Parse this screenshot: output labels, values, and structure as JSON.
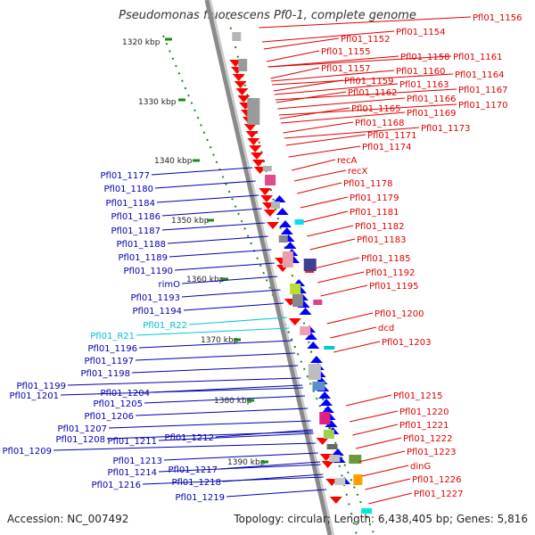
{
  "title": "Pseudomonas fluorescens Pf0-1, complete genome",
  "accession": "Accession: NC_007492",
  "summary": "Topology: circular; Length: 6,438,405 bp; Genes: 5,816",
  "colors": {
    "forward": "#ff0000",
    "reverse": "#0000ff",
    "rna": "#00c8d8",
    "backbone": "#888888",
    "ruler": "#1a8a1a",
    "forward_label": "#e00000",
    "reverse_label": "#0000b0"
  },
  "ruler_labels": [
    "1320 kbp",
    "1330 kbp",
    "1340 kbp",
    "1350 kbp",
    "1360 kbp",
    "1370 kbp",
    "1380 kbp",
    "1390 kbp"
  ],
  "forward_genes": [
    "Pfl01_1152",
    "Pfl01_1154",
    "Pfl01_1155",
    "Pfl01_1156",
    "Pfl01_1157",
    "Pfl01_1158",
    "Pfl01_1159",
    "Pfl01_1160",
    "Pfl01_1161",
    "Pfl01_1162",
    "Pfl01_1163",
    "Pfl01_1164",
    "Pfl01_1165",
    "Pfl01_1166",
    "Pfl01_1167",
    "Pfl01_1168",
    "Pfl01_1169",
    "Pfl01_1170",
    "Pfl01_1171",
    "Pfl01_1173",
    "Pfl01_1174",
    "recA",
    "recX",
    "Pfl01_1178",
    "Pfl01_1179",
    "Pfl01_1181",
    "Pfl01_1182",
    "Pfl01_1183",
    "Pfl01_1185",
    "Pfl01_1192",
    "Pfl01_1195",
    "Pfl01_1200",
    "dcd",
    "Pfl01_1203",
    "Pfl01_1215",
    "Pfl01_1220",
    "Pfl01_1221",
    "Pfl01_1222",
    "Pfl01_1223",
    "dinG",
    "Pfl01_1226",
    "Pfl01_1227"
  ],
  "reverse_genes": [
    "Pfl01_1177",
    "Pfl01_1180",
    "Pfl01_1184",
    "Pfl01_1186",
    "Pfl01_1187",
    "Pfl01_1188",
    "Pfl01_1189",
    "Pfl01_1190",
    "rimO",
    "Pfl01_1193",
    "Pfl01_1194",
    "Pfl01_R22",
    "Pfl01_R21",
    "Pfl01_1196",
    "Pfl01_1197",
    "Pfl01_1198",
    "Pfl01_1199",
    "Pfl01_1201",
    "Pfl01_1204",
    "Pfl01_1205",
    "Pfl01_1206",
    "Pfl01_1207",
    "Pfl01_1208",
    "Pfl01_1209",
    "Pfl01_1211",
    "Pfl01_1212",
    "Pfl01_1213",
    "Pfl01_1214",
    "Pfl01_1216",
    "Pfl01_1217",
    "Pfl01_1218",
    "Pfl01_1219"
  ],
  "rna_genes": [
    "Pfl01_R22",
    "Pfl01_R21"
  ]
}
